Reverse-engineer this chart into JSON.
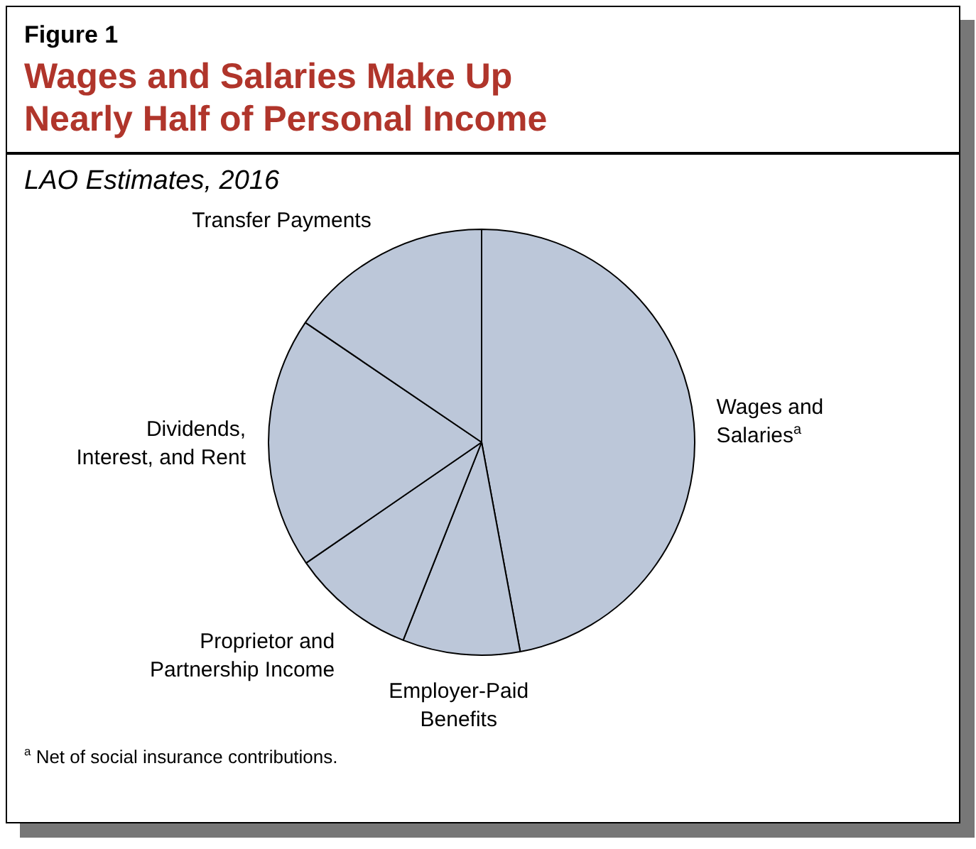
{
  "chart_data": {
    "type": "pie",
    "title": "Wages and Salaries Make Up Nearly Half of Personal Income",
    "subtitle": "LAO Estimates, 2016",
    "categories": [
      "Wages and Salaries$^{a}$",
      "Employer-Paid Benefits",
      "Proprietor and Partnership Income",
      "Dividends, Interest, and Rent",
      "Transfer Payments"
    ],
    "values": [
      47.1,
      8.9,
      9.4,
      19.1,
      15.5
    ],
    "colors": [
      "#bcc7d9",
      "#bcc7d9",
      "#bcc7d9",
      "#bcc7d9",
      "#bcc7d9"
    ],
    "annotations": [
      "Figure 1",
      "$^{a}$ Net of social insurance contributions."
    ]
  }
}
